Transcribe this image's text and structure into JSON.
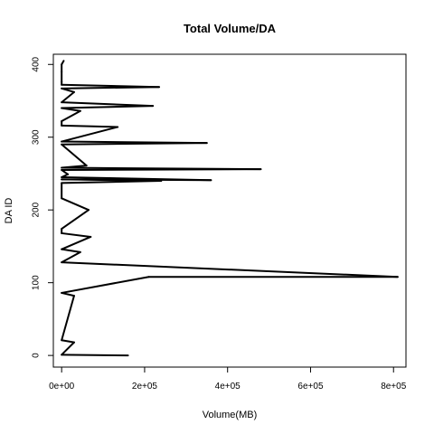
{
  "chart_data": {
    "type": "line",
    "title": "Total Volume/DA",
    "xlabel": "Volume(MB)",
    "ylabel": "DA ID",
    "xlim": [
      -20000,
      830000
    ],
    "ylim": [
      -16,
      414
    ],
    "x_ticks": [
      0,
      200000,
      400000,
      600000,
      800000
    ],
    "x_tick_labels": [
      "0e+00",
      "2e+05",
      "4e+05",
      "6e+05",
      "8e+05"
    ],
    "y_ticks": [
      0,
      100,
      200,
      300,
      400
    ],
    "y_tick_labels": [
      "0",
      "100",
      "200",
      "300",
      "400"
    ],
    "line_color": "#000000",
    "series": [
      {
        "points": [
          [
            160000,
            0
          ],
          [
            0,
            1
          ],
          [
            30000,
            18
          ],
          [
            0,
            21
          ],
          [
            30000,
            82
          ],
          [
            0,
            86
          ],
          [
            210000,
            108
          ],
          [
            810000,
            108
          ],
          [
            0,
            128
          ],
          [
            45000,
            142
          ],
          [
            0,
            146
          ],
          [
            70000,
            163
          ],
          [
            0,
            168
          ],
          [
            0,
            174
          ],
          [
            65000,
            200
          ],
          [
            0,
            216
          ],
          [
            0,
            237
          ],
          [
            240000,
            240
          ],
          [
            0,
            242
          ],
          [
            360000,
            241
          ],
          [
            0,
            245
          ],
          [
            15000,
            249
          ],
          [
            0,
            255
          ],
          [
            480000,
            256
          ],
          [
            0,
            258
          ],
          [
            60000,
            261
          ],
          [
            0,
            290
          ],
          [
            350000,
            292
          ],
          [
            0,
            294
          ],
          [
            135000,
            314
          ],
          [
            0,
            316
          ],
          [
            0,
            322
          ],
          [
            45000,
            336
          ],
          [
            0,
            340
          ],
          [
            220000,
            343
          ],
          [
            0,
            348
          ],
          [
            30000,
            362
          ],
          [
            0,
            367
          ],
          [
            235000,
            369
          ],
          [
            0,
            372
          ],
          [
            0,
            376
          ],
          [
            0,
            390
          ],
          [
            0,
            400
          ],
          [
            5000,
            405
          ]
        ]
      }
    ],
    "grid": false,
    "legend": "none"
  }
}
